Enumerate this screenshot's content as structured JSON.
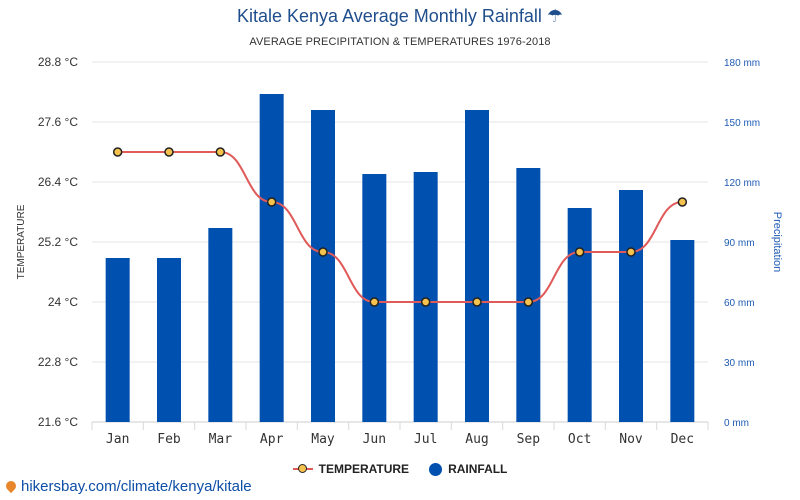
{
  "title": "Kitale Kenya Average Monthly Rainfall ☂",
  "subtitle": "AVERAGE PRECIPITATION & TEMPERATURES 1976-2018",
  "source": "hikersbay.com/climate/kenya/kitale",
  "legend": {
    "temperature": "TEMPERATURE",
    "rainfall": "RAINFALL"
  },
  "colors": {
    "bar": "#0050b0",
    "line": "#e05a5a",
    "marker": "#f6c24e",
    "title": "#1f4e8c",
    "right_axis": "#1f5bb5"
  },
  "chart_data": {
    "type": "bar",
    "categories": [
      "Jan",
      "Feb",
      "Mar",
      "Apr",
      "May",
      "Jun",
      "Jul",
      "Aug",
      "Sep",
      "Oct",
      "Nov",
      "Dec"
    ],
    "series": [
      {
        "name": "RAINFALL",
        "axis": "right",
        "type": "bar",
        "values": [
          82,
          82,
          97,
          164,
          156,
          124,
          125,
          156,
          127,
          107,
          116,
          91
        ]
      },
      {
        "name": "TEMPERATURE",
        "axis": "left",
        "type": "line",
        "values": [
          27,
          27,
          27,
          26,
          25,
          24,
          24,
          24,
          24,
          25,
          25,
          26
        ]
      }
    ],
    "ylabel": "TEMPERATURE",
    "y2label": "Precipitation",
    "ylim": [
      21.6,
      28.8
    ],
    "y2lim": [
      0,
      180
    ],
    "yticks": [
      "21.6 °C",
      "22.8 °C",
      "24 °C",
      "25.2 °C",
      "26.4 °C",
      "27.6 °C",
      "28.8 °C"
    ],
    "y2ticks": [
      "0 mm",
      "30 mm",
      "60 mm",
      "90 mm",
      "120 mm",
      "150 mm",
      "180 mm"
    ],
    "grid": true,
    "legend_position": "bottom"
  }
}
